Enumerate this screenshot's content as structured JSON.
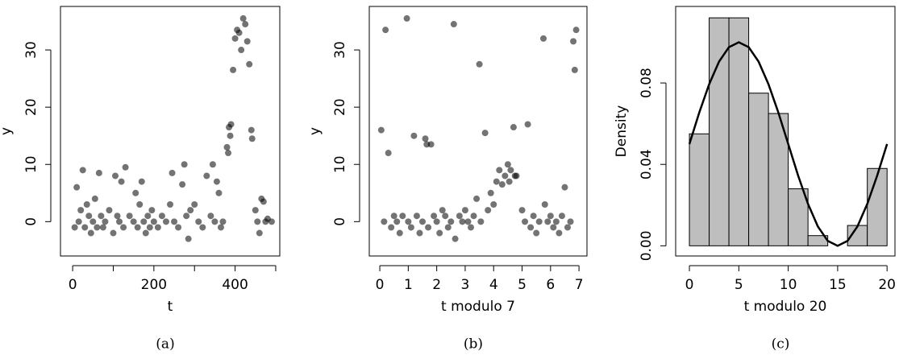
{
  "chart_data": [
    {
      "type": "scatter",
      "xlabel": "t",
      "ylabel": "y",
      "caption": "(a)",
      "color": "#000000",
      "x": [
        5,
        10,
        15,
        20,
        25,
        30,
        35,
        40,
        45,
        50,
        55,
        60,
        65,
        70,
        75,
        80,
        90,
        100,
        105,
        110,
        115,
        120,
        125,
        130,
        140,
        150,
        155,
        160,
        165,
        170,
        175,
        180,
        185,
        190,
        195,
        200,
        210,
        220,
        230,
        240,
        245,
        250,
        260,
        270,
        275,
        280,
        285,
        290,
        300,
        310,
        320,
        330,
        340,
        345,
        350,
        355,
        360,
        365,
        370,
        380,
        383,
        385,
        388,
        390,
        395,
        400,
        405,
        410,
        415,
        420,
        425,
        430,
        435,
        440,
        442,
        450,
        455,
        460,
        465,
        470,
        475,
        480,
        490
      ],
      "values": [
        -1,
        6,
        0,
        2,
        9,
        -1,
        3,
        1,
        -2,
        0,
        4,
        -1,
        8.5,
        1,
        -1,
        0,
        2,
        -2,
        8,
        1,
        0,
        7,
        -1,
        9.5,
        1,
        0,
        5,
        -1,
        3,
        7,
        0,
        -2,
        1,
        -1,
        2,
        0,
        -1,
        1,
        0,
        3,
        8.5,
        0,
        -1,
        6.5,
        10,
        1,
        -3,
        2,
        3,
        0,
        -1,
        8,
        1,
        10,
        0,
        7,
        5,
        -1,
        0,
        13,
        12,
        16.5,
        15,
        17,
        26.5,
        32,
        33.5,
        33,
        30,
        35.5,
        34.5,
        31.5,
        27.5,
        16,
        14.5,
        2,
        0,
        -2,
        4,
        3.5,
        0,
        0.5,
        0
      ],
      "xlim": [
        -30,
        510
      ],
      "ylim": [
        -6,
        37.6
      ],
      "xticks": [
        0,
        {
          "value": 100,
          "label": null
        },
        200,
        {
          "value": 300,
          "label": null
        },
        400,
        {
          "value": 500,
          "label": null
        }
      ],
      "yticks": [
        0,
        10,
        20,
        30
      ]
    },
    {
      "type": "scatter",
      "xlabel": "t modulo 7",
      "ylabel": "y",
      "caption": "(b)",
      "color": "#000000",
      "x": [
        0.05,
        0.15,
        0.2,
        0.3,
        0.4,
        0.5,
        0.6,
        0.7,
        0.8,
        0.95,
        1.0,
        1.1,
        1.2,
        1.3,
        1.4,
        1.5,
        1.6,
        1.65,
        1.7,
        1.8,
        1.9,
        2.0,
        2.1,
        2.2,
        2.3,
        2.4,
        2.5,
        2.6,
        2.65,
        2.8,
        2.9,
        3.0,
        3.1,
        3.2,
        3.3,
        3.4,
        3.5,
        3.55,
        3.7,
        3.8,
        3.9,
        4.0,
        4.1,
        4.2,
        4.3,
        4.4,
        4.5,
        4.55,
        4.6,
        4.7,
        4.75,
        4.8,
        5.0,
        5.1,
        5.2,
        5.3,
        5.4,
        5.5,
        5.6,
        5.75,
        5.8,
        5.9,
        6.0,
        6.1,
        6.2,
        6.3,
        6.4,
        6.5,
        6.6,
        6.7,
        6.8,
        6.85,
        6.9
      ],
      "values": [
        16,
        0,
        33.5,
        12,
        -1,
        1,
        0,
        -2,
        1,
        35.5,
        0,
        -1,
        15,
        1,
        -2,
        0,
        14.5,
        13.5,
        -1,
        13.5,
        1,
        0,
        -2,
        2,
        1,
        -1,
        0,
        34.5,
        -3,
        1,
        0,
        2,
        0,
        -1,
        1,
        4,
        27.5,
        0,
        15.5,
        2,
        5,
        3,
        7,
        9,
        6.5,
        8,
        10,
        7,
        9,
        16.5,
        8,
        8,
        2,
        0,
        17,
        -1,
        1,
        -2,
        0,
        32,
        3,
        0,
        1,
        -1,
        0,
        -2,
        1,
        6,
        -1,
        0,
        31.5,
        26.5,
        33.5
      ],
      "xlim": [
        -0.37,
        7.28
      ],
      "ylim": [
        -6,
        37.6
      ],
      "xticks": [
        0,
        1,
        2,
        3,
        4,
        5,
        6,
        7
      ],
      "yticks": [
        0,
        10,
        20,
        30
      ]
    },
    {
      "type": "histogram",
      "xlabel": "t modulo 20",
      "ylabel": "Density",
      "caption": "(c)",
      "color": "#bebebe",
      "bins": [
        0,
        2,
        4,
        6,
        8,
        10,
        12,
        14,
        16,
        18,
        20
      ],
      "values": [
        0.055,
        0.112,
        0.112,
        0.075,
        0.065,
        0.028,
        0.005,
        0,
        0.01,
        0.038
      ],
      "line": {
        "color": "#000000",
        "x": [
          0,
          1,
          2,
          3,
          4,
          5,
          6,
          7,
          8,
          9,
          10,
          11,
          12,
          13,
          14,
          15,
          16,
          17,
          18,
          19,
          20
        ],
        "values": [
          0.05,
          0.0655,
          0.0794,
          0.0905,
          0.0976,
          0.1,
          0.0976,
          0.0905,
          0.0794,
          0.0655,
          0.05,
          0.0345,
          0.0206,
          0.0095,
          0.0024,
          0,
          0.0024,
          0.0095,
          0.0206,
          0.0345,
          0.05
        ]
      },
      "xlim": [
        -1.39,
        20.8
      ],
      "ylim": [
        -0.005,
        0.1176
      ],
      "xticks": [
        0,
        5,
        10,
        15,
        20
      ],
      "yticks": [
        {
          "value": 0,
          "label": "0.00"
        },
        0.04,
        0.08
      ]
    }
  ]
}
